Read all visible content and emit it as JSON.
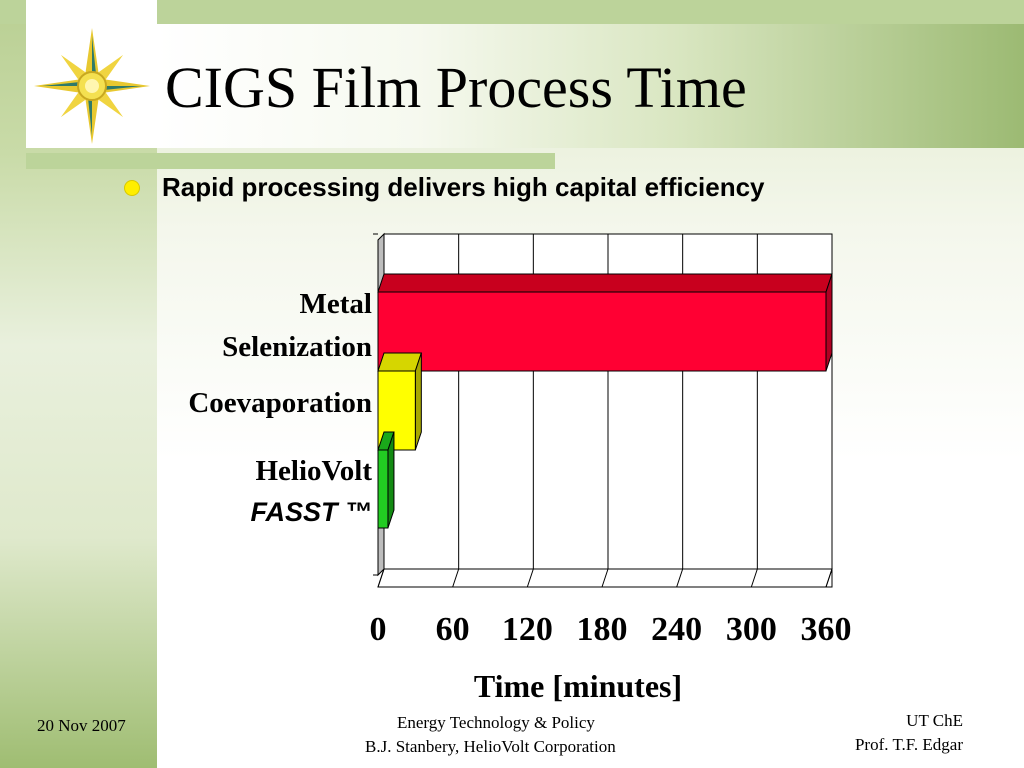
{
  "slide": {
    "title": "CIGS Film Process Time",
    "bullet": "Rapid processing delivers high capital efficiency"
  },
  "footer": {
    "date": "20 Nov 2007",
    "center_line1": "Energy Technology & Policy",
    "center_line2": "B.J. Stanbery, HelioVolt Corporation",
    "right_line1": "UT ChE",
    "right_line2": "Prof. T.F. Edgar"
  },
  "colors": {
    "metal_selenization": "#ff0033",
    "coevaporation": "#ffff00",
    "fasst": "#22cc22",
    "bullet": "#ffee00"
  },
  "chart_data": {
    "type": "bar",
    "orientation": "horizontal",
    "categories": [
      {
        "lines": [
          "Metal",
          "Selenization"
        ],
        "italic": [
          false,
          false
        ]
      },
      {
        "lines": [
          "Coevaporation"
        ],
        "italic": [
          false
        ]
      },
      {
        "lines": [
          "HelioVolt",
          "FASST ™"
        ],
        "italic": [
          false,
          true
        ]
      }
    ],
    "values": [
      360,
      30,
      8
    ],
    "xlabel": "Time [minutes]",
    "xticks": [
      0,
      60,
      120,
      180,
      240,
      300,
      360
    ],
    "xlim": [
      0,
      360
    ],
    "grid": true
  }
}
